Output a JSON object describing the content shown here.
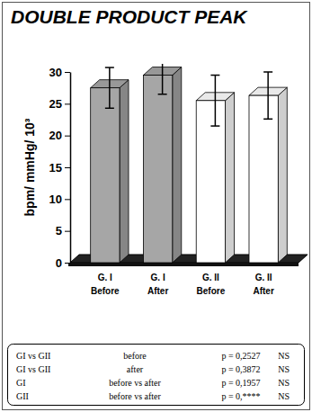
{
  "chart_data": {
    "type": "bar",
    "title": "DOUBLE PRODUCT PEAK",
    "y_label": "bpm/ mmHg/ 10³",
    "categories": [
      "G. I Before",
      "G. I After",
      "G. II Before",
      "G. II After"
    ],
    "values": [
      27.5,
      29.5,
      25.5,
      26.3
    ],
    "errors": [
      3.2,
      3,
      4,
      3.7
    ],
    "colors": [
      "#a6a6a6",
      "#a6a6a6",
      "#ffffff",
      "#ffffff"
    ],
    "ylim": [
      0,
      30
    ],
    "yticks": [
      0,
      5,
      10,
      15,
      20,
      25,
      30
    ],
    "grid": false,
    "table": {
      "rows": [
        [
          "GI vs GII",
          "before",
          "p = 0,2527",
          "NS"
        ],
        [
          "GI vs GII",
          "after",
          "p = 0,3872",
          "NS"
        ],
        [
          "GI",
          "before vs after",
          "p = 0,1957",
          "NS"
        ],
        [
          "GII",
          "before vs after",
          "p = 0,****",
          "NS"
        ]
      ]
    }
  }
}
